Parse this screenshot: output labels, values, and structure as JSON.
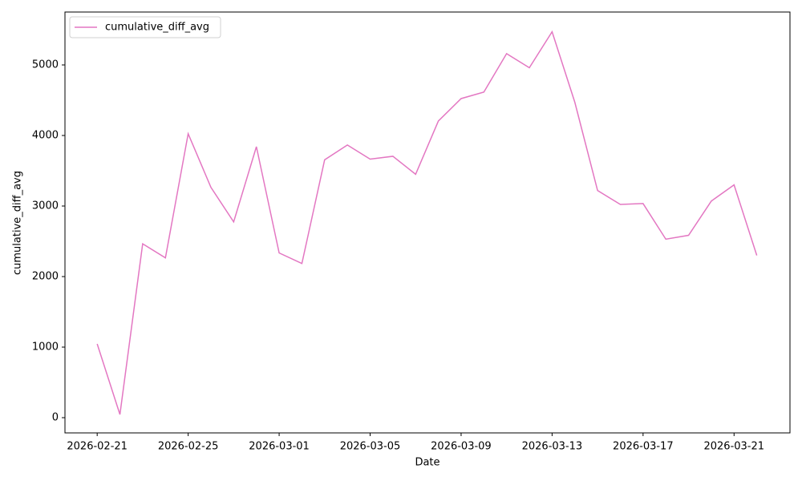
{
  "chart_data": {
    "type": "line",
    "x_label": "Date",
    "y_label": "cumulative_diff_avg",
    "x": [
      "2026-02-21",
      "2026-02-22",
      "2026-02-23",
      "2026-02-24",
      "2026-02-25",
      "2026-02-26",
      "2026-02-27",
      "2026-02-28",
      "2026-03-01",
      "2026-03-02",
      "2026-03-03",
      "2026-03-04",
      "2026-03-05",
      "2026-03-06",
      "2026-03-07",
      "2026-03-08",
      "2026-03-09",
      "2026-03-10",
      "2026-03-11",
      "2026-03-12",
      "2026-03-13",
      "2026-03-14",
      "2026-03-15",
      "2026-03-16",
      "2026-03-17",
      "2026-03-18",
      "2026-03-19",
      "2026-03-20",
      "2026-03-21",
      "2026-03-22"
    ],
    "series": [
      {
        "name": "cumulative_diff_avg",
        "color": "#e377c2",
        "values": [
          1045,
          45,
          2465,
          2265,
          4025,
          3265,
          2775,
          3841,
          2335,
          2185,
          3655,
          3865,
          3665,
          3705,
          3450,
          4205,
          4523,
          4615,
          5160,
          4960,
          5470,
          4470,
          3220,
          3023,
          3035,
          2530,
          2585,
          3070,
          3300,
          2300
        ]
      }
    ],
    "xlim": [
      "2026-02-19T14:00",
      "2026-03-23T11:00"
    ],
    "xticks": [
      "2026-02-21",
      "2026-02-25",
      "2026-03-01",
      "2026-03-05",
      "2026-03-09",
      "2026-03-13",
      "2026-03-17",
      "2026-03-21"
    ],
    "ylim": [
      -216,
      5750
    ],
    "yticks": [
      0,
      1000,
      2000,
      3000,
      4000,
      5000
    ],
    "grid": false,
    "legend": "upper left"
  }
}
